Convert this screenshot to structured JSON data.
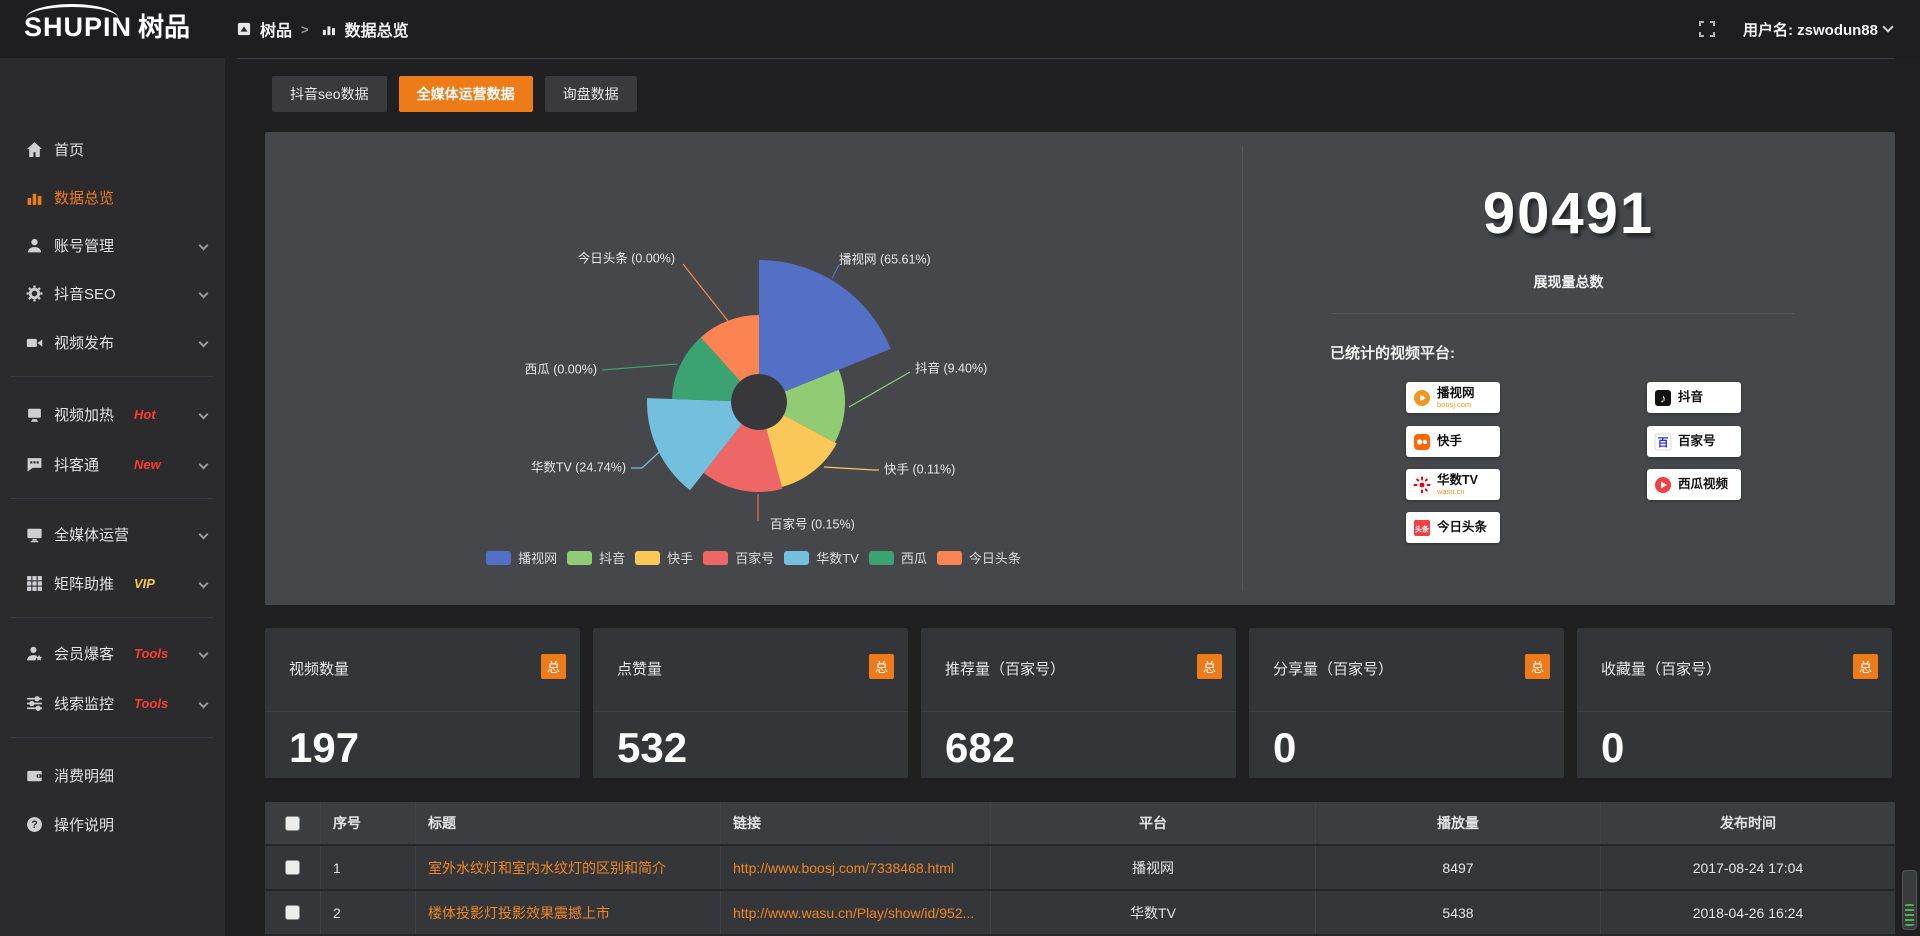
{
  "topbar": {
    "logo": {
      "en": "SHUPIN",
      "cn": "树品"
    },
    "breadcrumb": {
      "first": "树品",
      "separator": ">",
      "second": "数据总览"
    },
    "username": "用户名: zswodun88"
  },
  "sidebar": {
    "items": [
      {
        "key": "home",
        "label": "首页",
        "icon": "home"
      },
      {
        "key": "data-overview",
        "label": "数据总览",
        "icon": "bar-chart",
        "active": true
      },
      {
        "key": "account-manage",
        "label": "账号管理",
        "icon": "user",
        "chevron": true
      },
      {
        "key": "douyin-seo",
        "label": "抖音SEO",
        "icon": "gear",
        "chevron": true
      },
      {
        "key": "video-publish",
        "label": "视频发布",
        "icon": "publish",
        "chevron": true,
        "divider_after": true
      },
      {
        "key": "video-heat",
        "label": "视频加热",
        "icon": "heat",
        "chevron": true,
        "tag": "Hot",
        "tag_color": "#ff3b30"
      },
      {
        "key": "douketong",
        "label": "抖客通",
        "icon": "chat",
        "chevron": true,
        "tag": "New",
        "tag_color": "#ff3b30",
        "divider_after": true
      },
      {
        "key": "omni-media",
        "label": "全媒体运营",
        "icon": "monitor",
        "chevron": true
      },
      {
        "key": "matrix-boost",
        "label": "矩阵助推",
        "icon": "grid",
        "chevron": true,
        "tag": "VIP",
        "tag_color": "#f7c948",
        "divider_after": true
      },
      {
        "key": "member-leads",
        "label": "会员爆客",
        "icon": "user-star",
        "chevron": true,
        "tag": "Tools",
        "tag_color": "#ff3b30"
      },
      {
        "key": "lead-monitor",
        "label": "线索监控",
        "icon": "sliders",
        "chevron": true,
        "tag": "Tools",
        "tag_color": "#ff3b30",
        "divider_after": true
      },
      {
        "key": "spend-details",
        "label": "消费明细",
        "icon": "wallet"
      },
      {
        "key": "help",
        "label": "操作说明",
        "icon": "help"
      }
    ]
  },
  "tabs": [
    {
      "key": "douyin-seo-data",
      "label": "抖音seo数据",
      "active": false
    },
    {
      "key": "omni-media-data",
      "label": "全媒体运营数据",
      "active": true
    },
    {
      "key": "inquiry-data",
      "label": "询盘数据",
      "active": false
    }
  ],
  "chart_data": {
    "type": "pie",
    "variant": "nightingale-rose",
    "title": "",
    "slices": [
      {
        "name": "播视网",
        "percent": "65.61",
        "color": "#5470c6"
      },
      {
        "name": "抖音",
        "percent": "9.40",
        "color": "#91cc75"
      },
      {
        "name": "快手",
        "percent": "0.11",
        "color": "#fac858"
      },
      {
        "name": "百家号",
        "percent": "0.15",
        "color": "#ee6666"
      },
      {
        "name": "华数TV",
        "percent": "24.74",
        "color": "#73c0de"
      },
      {
        "name": "西瓜",
        "percent": "0.00",
        "color": "#3ba272"
      },
      {
        "name": "今日头条",
        "percent": "0.00",
        "color": "#fc8452"
      }
    ],
    "legend": [
      "播视网",
      "抖音",
      "快手",
      "百家号",
      "华数TV",
      "西瓜",
      "今日头条"
    ],
    "legend_position": "bottom"
  },
  "summary": {
    "total_value": "90491",
    "total_label": "展现量总数",
    "platforms_title": "已统计的视频平台:",
    "platform_badges": [
      {
        "key": "boosj",
        "name": "播视网",
        "sub": "boosj.com"
      },
      {
        "key": "kuaishou",
        "name": "快手",
        "sub": ""
      },
      {
        "key": "wasu",
        "name": "华数TV",
        "sub": "wasu.cn"
      },
      {
        "key": "toutiao",
        "name": "今日头条",
        "sub": ""
      },
      {
        "key": "douyin",
        "name": "抖音",
        "sub": ""
      },
      {
        "key": "baijiahao",
        "name": "百家号",
        "sub": ""
      },
      {
        "key": "xigua",
        "name": "西瓜视频",
        "sub": ""
      }
    ]
  },
  "stat_cards": [
    {
      "label": "视频数量",
      "badge": "总",
      "value": "197"
    },
    {
      "label": "点赞量",
      "badge": "总",
      "value": "532"
    },
    {
      "label": "推荐量（百家号）",
      "badge": "总",
      "value": "682"
    },
    {
      "label": "分享量（百家号）",
      "badge": "总",
      "value": "0"
    },
    {
      "label": "收藏量（百家号）",
      "badge": "总",
      "value": "0"
    }
  ],
  "table": {
    "headers": [
      "序号",
      "标题",
      "链接",
      "平台",
      "播放量",
      "发布时间"
    ],
    "rows": [
      {
        "no": "1",
        "title": "室外水纹灯和室内水纹灯的区别和简介",
        "link": "http://www.boosj.com/7338468.html",
        "platform": "播视网",
        "plays": "8497",
        "time": "2017-08-24 17:04"
      },
      {
        "no": "2",
        "title": "楼体投影灯投影效果震撼上市",
        "link": "http://www.wasu.cn/Play/show/id/952...",
        "platform": "华数TV",
        "plays": "5438",
        "time": "2018-04-26 16:24"
      },
      {
        "no": "",
        "title": "",
        "link": "",
        "platform": "",
        "plays": "",
        "time": "",
        "partial": true
      }
    ]
  },
  "colors": {
    "accent": "#ed7b17",
    "link": "#ee8625",
    "hot": "#ff3b30",
    "vip": "#f7c948",
    "panel": "#46474b"
  }
}
